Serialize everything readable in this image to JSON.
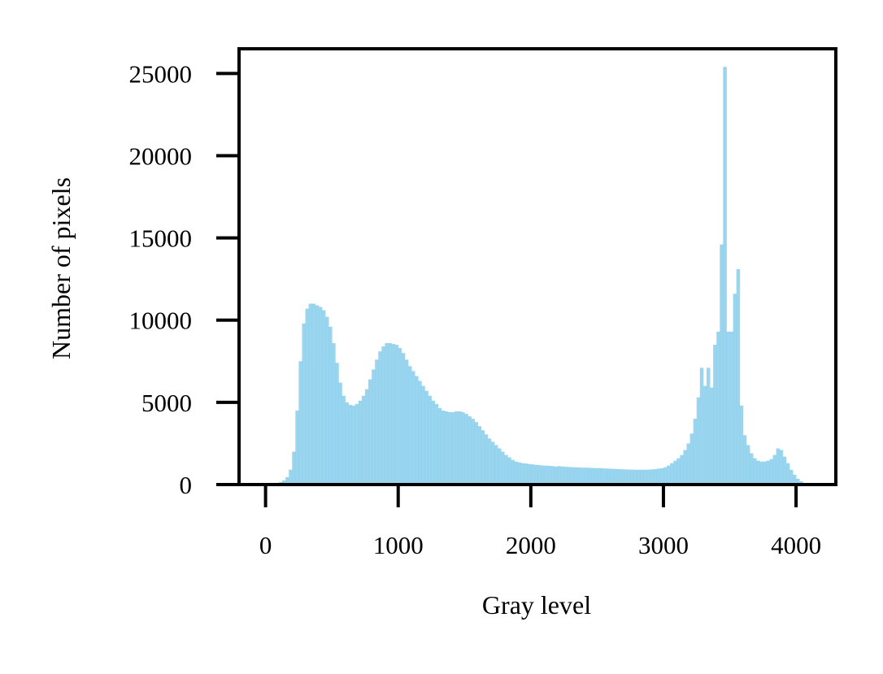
{
  "chart_data": {
    "type": "bar",
    "title": "",
    "xlabel": "Gray level",
    "ylabel": "Number of pixels",
    "xlim": [
      -200,
      4300
    ],
    "ylim": [
      0,
      26500
    ],
    "xticks": [
      0,
      1000,
      2000,
      3000,
      4000
    ],
    "xtick_labels": [
      "0",
      "1000",
      "2000",
      "3000",
      "4000"
    ],
    "yticks": [
      0,
      5000,
      10000,
      15000,
      20000,
      25000
    ],
    "ytick_labels": [
      "0",
      "5000",
      "10000",
      "15000",
      "20000",
      "25000"
    ],
    "grid": false,
    "legend": "none",
    "bin_width": 25,
    "bar_color": "#87CEEB",
    "bar_opacity": 0.85,
    "bins": [
      [
        0,
        0
      ],
      [
        25,
        20
      ],
      [
        50,
        50
      ],
      [
        75,
        90
      ],
      [
        100,
        150
      ],
      [
        125,
        250
      ],
      [
        150,
        450
      ],
      [
        175,
        900
      ],
      [
        200,
        2000
      ],
      [
        225,
        4500
      ],
      [
        250,
        7500
      ],
      [
        275,
        9800
      ],
      [
        300,
        10700
      ],
      [
        325,
        11000
      ],
      [
        350,
        11000
      ],
      [
        375,
        10900
      ],
      [
        400,
        10800
      ],
      [
        425,
        10600
      ],
      [
        450,
        10200
      ],
      [
        475,
        9600
      ],
      [
        500,
        8600
      ],
      [
        525,
        7400
      ],
      [
        550,
        6200
      ],
      [
        575,
        5400
      ],
      [
        600,
        5000
      ],
      [
        625,
        4850
      ],
      [
        650,
        4800
      ],
      [
        675,
        4900
      ],
      [
        700,
        5100
      ],
      [
        725,
        5400
      ],
      [
        750,
        5800
      ],
      [
        775,
        6400
      ],
      [
        800,
        7000
      ],
      [
        825,
        7600
      ],
      [
        850,
        8100
      ],
      [
        875,
        8400
      ],
      [
        900,
        8600
      ],
      [
        925,
        8600
      ],
      [
        950,
        8550
      ],
      [
        975,
        8500
      ],
      [
        1000,
        8300
      ],
      [
        1025,
        8000
      ],
      [
        1050,
        7600
      ],
      [
        1075,
        7200
      ],
      [
        1100,
        6900
      ],
      [
        1125,
        6600
      ],
      [
        1150,
        6300
      ],
      [
        1175,
        6000
      ],
      [
        1200,
        5700
      ],
      [
        1225,
        5400
      ],
      [
        1250,
        5100
      ],
      [
        1275,
        4900
      ],
      [
        1300,
        4650
      ],
      [
        1325,
        4500
      ],
      [
        1350,
        4450
      ],
      [
        1375,
        4400
      ],
      [
        1400,
        4400
      ],
      [
        1425,
        4450
      ],
      [
        1450,
        4450
      ],
      [
        1475,
        4400
      ],
      [
        1500,
        4300
      ],
      [
        1525,
        4150
      ],
      [
        1550,
        4000
      ],
      [
        1575,
        3800
      ],
      [
        1600,
        3550
      ],
      [
        1625,
        3300
      ],
      [
        1650,
        3050
      ],
      [
        1675,
        2800
      ],
      [
        1700,
        2600
      ],
      [
        1725,
        2400
      ],
      [
        1750,
        2200
      ],
      [
        1775,
        2000
      ],
      [
        1800,
        1800
      ],
      [
        1825,
        1650
      ],
      [
        1850,
        1500
      ],
      [
        1875,
        1400
      ],
      [
        1900,
        1350
      ],
      [
        1925,
        1300
      ],
      [
        1950,
        1280
      ],
      [
        1975,
        1250
      ],
      [
        2000,
        1230
      ],
      [
        2025,
        1200
      ],
      [
        2050,
        1180
      ],
      [
        2075,
        1160
      ],
      [
        2100,
        1150
      ],
      [
        2125,
        1140
      ],
      [
        2150,
        1120
      ],
      [
        2175,
        1100
      ],
      [
        2200,
        1120
      ],
      [
        2225,
        1100
      ],
      [
        2250,
        1080
      ],
      [
        2275,
        1070
      ],
      [
        2300,
        1060
      ],
      [
        2325,
        1050
      ],
      [
        2350,
        1040
      ],
      [
        2375,
        1030
      ],
      [
        2400,
        1030
      ],
      [
        2425,
        1020
      ],
      [
        2450,
        1010
      ],
      [
        2475,
        1000
      ],
      [
        2500,
        1000
      ],
      [
        2525,
        990
      ],
      [
        2550,
        980
      ],
      [
        2575,
        970
      ],
      [
        2600,
        960
      ],
      [
        2625,
        950
      ],
      [
        2650,
        940
      ],
      [
        2675,
        930
      ],
      [
        2700,
        920
      ],
      [
        2725,
        910
      ],
      [
        2750,
        910
      ],
      [
        2775,
        900
      ],
      [
        2800,
        900
      ],
      [
        2825,
        900
      ],
      [
        2850,
        900
      ],
      [
        2875,
        910
      ],
      [
        2900,
        920
      ],
      [
        2925,
        940
      ],
      [
        2950,
        970
      ],
      [
        2975,
        1000
      ],
      [
        3000,
        1050
      ],
      [
        3025,
        1150
      ],
      [
        3050,
        1300
      ],
      [
        3075,
        1450
      ],
      [
        3100,
        1600
      ],
      [
        3125,
        1800
      ],
      [
        3150,
        2100
      ],
      [
        3175,
        2500
      ],
      [
        3200,
        3100
      ],
      [
        3225,
        4000
      ],
      [
        3250,
        5300
      ],
      [
        3275,
        7100
      ],
      [
        3300,
        6000
      ],
      [
        3325,
        7100
      ],
      [
        3350,
        5900
      ],
      [
        3375,
        8500
      ],
      [
        3400,
        9300
      ],
      [
        3425,
        14600
      ],
      [
        3450,
        25400
      ],
      [
        3475,
        9300
      ],
      [
        3500,
        9300
      ],
      [
        3525,
        11600
      ],
      [
        3550,
        13100
      ],
      [
        3575,
        4800
      ],
      [
        3600,
        3000
      ],
      [
        3625,
        2400
      ],
      [
        3650,
        1900
      ],
      [
        3675,
        1600
      ],
      [
        3700,
        1450
      ],
      [
        3725,
        1400
      ],
      [
        3750,
        1400
      ],
      [
        3775,
        1450
      ],
      [
        3800,
        1550
      ],
      [
        3825,
        1800
      ],
      [
        3850,
        2200
      ],
      [
        3875,
        2100
      ],
      [
        3900,
        1700
      ],
      [
        3925,
        1300
      ],
      [
        3950,
        900
      ],
      [
        3975,
        600
      ],
      [
        4000,
        350
      ],
      [
        4025,
        200
      ],
      [
        4050,
        100
      ],
      [
        4075,
        40
      ]
    ]
  }
}
